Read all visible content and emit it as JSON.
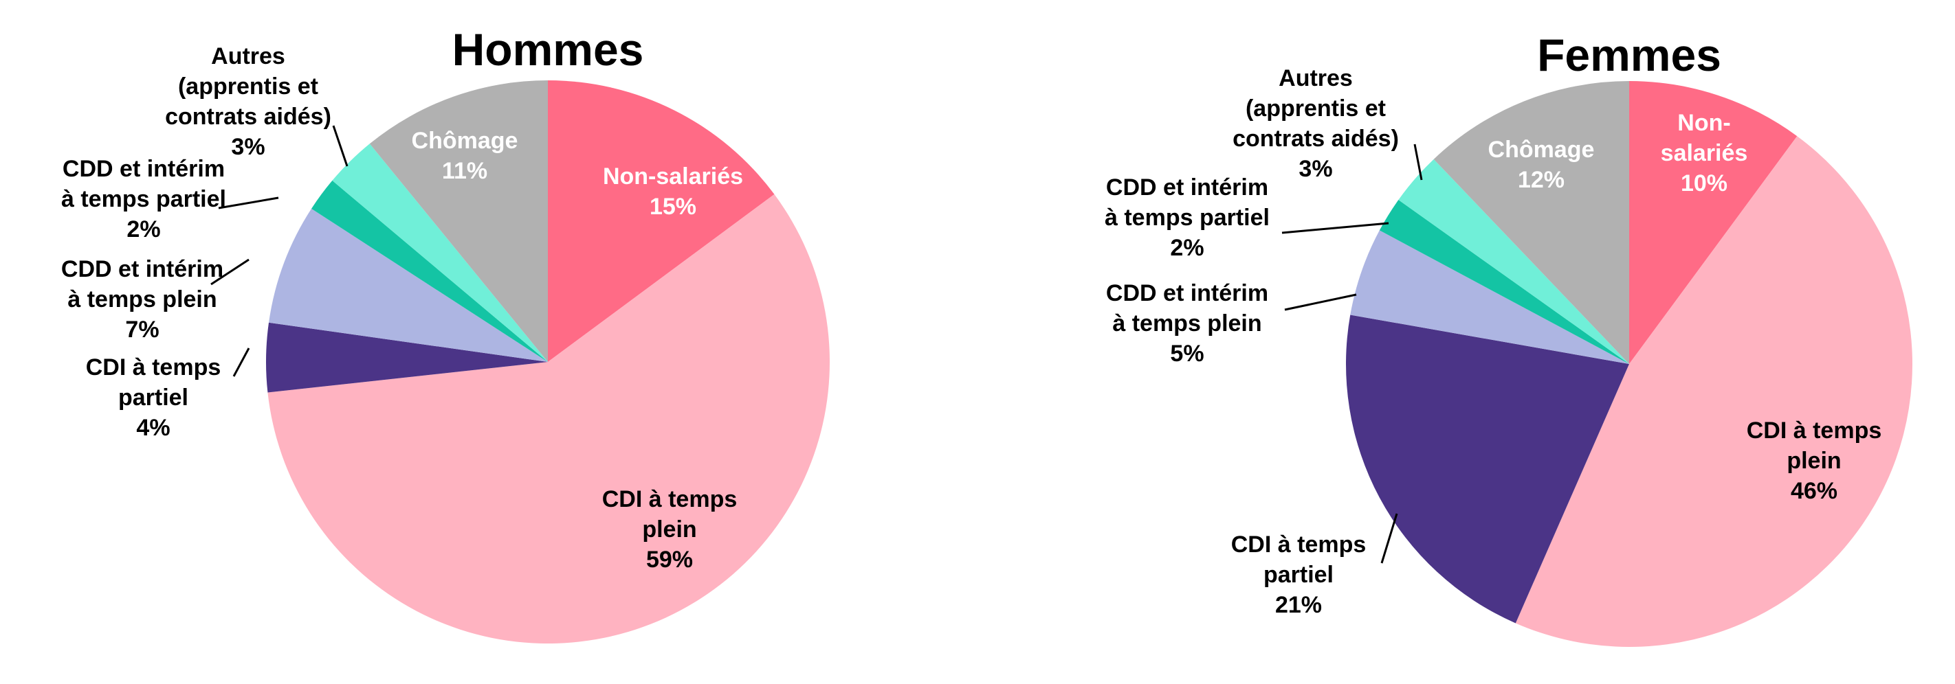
{
  "colors": {
    "non_salaries": "#ff6b86",
    "cdi_plein": "#ffb3c1",
    "cdi_partiel": "#4b3487",
    "cdd_plein": "#adb5e2",
    "cdd_partiel": "#14c4a4",
    "autres": "#70efd8",
    "chomage": "#b1b1b1",
    "leader": "#000000"
  },
  "chart_data": [
    {
      "type": "pie",
      "title": "Hommes",
      "start": "12 o'clock, clockwise",
      "slices": [
        {
          "key": "non_salaries",
          "label": [
            "Non-salariés"
          ],
          "pct_label": "15%",
          "value": 15,
          "label_color": "#ffffff",
          "label_placement": "inside"
        },
        {
          "key": "cdi_plein",
          "label": [
            "CDI à temps",
            "plein"
          ],
          "pct_label": "59%",
          "value": 59,
          "label_color": "#000000",
          "label_placement": "inside"
        },
        {
          "key": "cdi_partiel",
          "label": [
            "CDI à temps",
            "partiel"
          ],
          "pct_label": "4%",
          "value": 4,
          "label_color": "#000000",
          "label_placement": "outside"
        },
        {
          "key": "cdd_plein",
          "label": [
            "CDD et intérim",
            "à temps plein"
          ],
          "pct_label": "7%",
          "value": 7,
          "label_color": "#000000",
          "label_placement": "outside"
        },
        {
          "key": "cdd_partiel",
          "label": [
            "CDD et intérim",
            "à temps partiel"
          ],
          "pct_label": "2%",
          "value": 2,
          "label_color": "#000000",
          "label_placement": "outside"
        },
        {
          "key": "autres",
          "label": [
            "Autres",
            "(apprentis et",
            "contrats aidés)"
          ],
          "pct_label": "3%",
          "value": 3,
          "label_color": "#000000",
          "label_placement": "outside"
        },
        {
          "key": "chomage",
          "label": [
            "Chômage"
          ],
          "pct_label": "11%",
          "value": 11,
          "label_color": "#ffffff",
          "label_placement": "inside"
        }
      ]
    },
    {
      "type": "pie",
      "title": "Femmes",
      "start": "12 o'clock, clockwise",
      "slices": [
        {
          "key": "non_salaries",
          "label": [
            "Non-",
            "salariés"
          ],
          "pct_label": "10%",
          "value": 10,
          "label_color": "#ffffff",
          "label_placement": "inside"
        },
        {
          "key": "cdi_plein",
          "label": [
            "CDI à temps",
            "plein"
          ],
          "pct_label": "46%",
          "value": 46,
          "label_color": "#000000",
          "label_placement": "inside"
        },
        {
          "key": "cdi_partiel",
          "label": [
            "CDI à temps",
            "partiel"
          ],
          "pct_label": "21%",
          "value": 21,
          "label_color": "#000000",
          "label_placement": "outside"
        },
        {
          "key": "cdd_plein",
          "label": [
            "CDD et intérim",
            "à temps plein"
          ],
          "pct_label": "5%",
          "value": 5,
          "label_color": "#000000",
          "label_placement": "outside"
        },
        {
          "key": "cdd_partiel",
          "label": [
            "CDD et intérim",
            "à temps partiel"
          ],
          "pct_label": "2%",
          "value": 2,
          "label_color": "#000000",
          "label_placement": "outside"
        },
        {
          "key": "autres",
          "label": [
            "Autres",
            "(apprentis et",
            "contrats aidés)"
          ],
          "pct_label": "3%",
          "value": 3,
          "label_color": "#000000",
          "label_placement": "outside"
        },
        {
          "key": "chomage",
          "label": [
            "Chômage"
          ],
          "pct_label": "12%",
          "value": 12,
          "label_color": "#ffffff",
          "label_placement": "inside"
        }
      ]
    }
  ]
}
